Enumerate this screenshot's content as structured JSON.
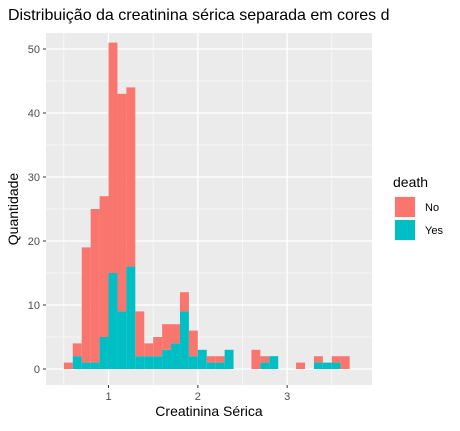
{
  "chart_data": {
    "type": "bar",
    "stacked": true,
    "title": "Distribuição da creatinina sérica separada em cores d",
    "xlabel": "Creatinina Sérica",
    "ylabel": "Quantidade",
    "xlim": [
      0.3,
      3.95
    ],
    "ylim": [
      -2.5,
      52.5
    ],
    "x_ticks": [
      1,
      2,
      3
    ],
    "y_ticks": [
      0,
      10,
      20,
      30,
      40,
      50
    ],
    "grid": true,
    "legend": {
      "title": "death",
      "placement": "right",
      "entries": [
        {
          "label": "No",
          "color": "#f8766d"
        },
        {
          "label": "Yes",
          "color": "#00bfc4"
        }
      ]
    },
    "bin_width": 0.1,
    "categories": [
      0.55,
      0.65,
      0.75,
      0.85,
      0.95,
      1.05,
      1.15,
      1.25,
      1.35,
      1.45,
      1.55,
      1.65,
      1.75,
      1.85,
      1.95,
      2.05,
      2.15,
      2.25,
      2.35,
      2.45,
      2.55,
      2.65,
      2.75,
      2.85,
      2.95,
      3.05,
      3.15,
      3.25,
      3.35,
      3.45,
      3.55,
      3.65,
      3.75
    ],
    "series": [
      {
        "name": "No",
        "color": "#f8766d",
        "values": [
          1,
          2,
          18,
          24,
          22,
          36,
          34,
          28,
          7,
          2,
          3,
          4,
          3,
          3,
          4,
          0,
          1,
          1,
          0,
          0,
          0,
          3,
          1,
          0,
          0,
          0,
          1,
          0,
          1,
          0,
          1,
          2,
          0
        ]
      },
      {
        "name": "Yes",
        "color": "#00bfc4",
        "values": [
          0,
          2,
          1,
          1,
          5,
          15,
          9,
          16,
          2,
          2,
          2,
          3,
          4,
          9,
          2,
          3,
          1,
          1,
          3,
          0,
          0,
          0,
          1,
          2,
          0,
          0,
          0,
          0,
          1,
          1,
          1,
          0,
          0
        ]
      }
    ]
  }
}
